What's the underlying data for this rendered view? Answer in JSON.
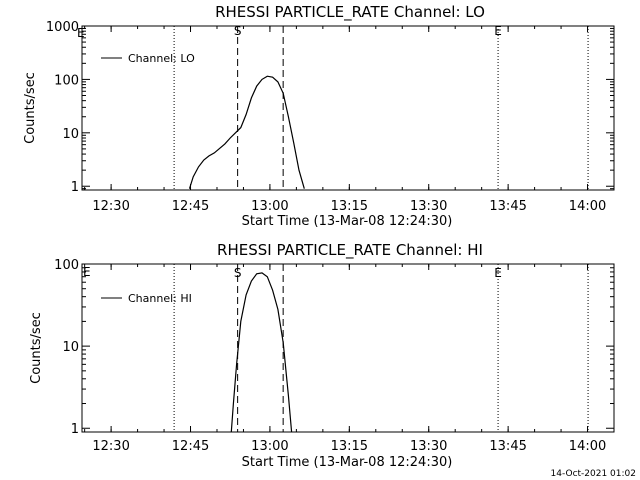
{
  "chart_data": [
    {
      "type": "line",
      "title": "RHESSI PARTICLE_RATE Channel: LO",
      "xlabel": "Start Time (13-Mar-08 12:24:30)",
      "ylabel": "Counts/sec",
      "x_tick_labels": [
        "12:30",
        "12:45",
        "13:00",
        "13:15",
        "13:30",
        "13:45",
        "14:00"
      ],
      "x_ticks_min": [
        5.5,
        20.5,
        35.5,
        50.5,
        65.5,
        80.5,
        95.5
      ],
      "xlim_min": [
        0,
        100.5
      ],
      "y_scale": "log",
      "ylim": [
        0.85,
        1000
      ],
      "y_tick_labels": [
        "1",
        "10",
        "100",
        "1000"
      ],
      "y_ticks": [
        1,
        10,
        100,
        1000
      ],
      "legend": {
        "label": "Channel: LO",
        "placement": "top-left"
      },
      "series": [
        {
          "name": "Channel: LO",
          "x_min": [
            20.3,
            21.0,
            22.0,
            23.0,
            24.0,
            25.0,
            26.0,
            27.0,
            28.0,
            29.0,
            30.0,
            31.0,
            32.0,
            33.0,
            34.0,
            35.0,
            36.0,
            37.0,
            38.0,
            39.0,
            40.0,
            41.0,
            42.0
          ],
          "y": [
            0.9,
            1.5,
            2.3,
            3.1,
            3.7,
            4.2,
            5.1,
            6.2,
            8.0,
            10.0,
            12.5,
            22,
            45,
            75,
            100,
            115,
            110,
            90,
            55,
            20,
            6.5,
            2.0,
            0.9
          ]
        }
      ],
      "vertical_lines": [
        {
          "x_min": 17.4,
          "style": "dotted"
        },
        {
          "x_min": 29.4,
          "style": "dashed"
        },
        {
          "x_min": 38.0,
          "style": "dashed"
        },
        {
          "x_min": 78.6,
          "style": "dotted"
        },
        {
          "x_min": 95.6,
          "style": "dotted"
        }
      ],
      "markers": [
        {
          "label": "S",
          "x_min": 29.4
        },
        {
          "label": "E",
          "x_min": 78.6
        }
      ],
      "corner_mark": "E"
    },
    {
      "type": "line",
      "title": "RHESSI PARTICLE_RATE Channel: HI",
      "xlabel": "Start Time (13-Mar-08 12:24:30)",
      "ylabel": "Counts/sec",
      "x_tick_labels": [
        "12:30",
        "12:45",
        "13:00",
        "13:15",
        "13:30",
        "13:45",
        "14:00"
      ],
      "x_ticks_min": [
        5.5,
        20.5,
        35.5,
        50.5,
        65.5,
        80.5,
        95.5
      ],
      "xlim_min": [
        0,
        100.5
      ],
      "y_scale": "log",
      "ylim": [
        0.9,
        100
      ],
      "y_tick_labels": [
        "1",
        "10",
        "100"
      ],
      "y_ticks": [
        1,
        10,
        100
      ],
      "legend": {
        "label": "Channel: HI",
        "placement": "top-left"
      },
      "series": [
        {
          "name": "Channel: HI",
          "x_min": [
            28.2,
            28.6,
            29.2,
            30.0,
            31.0,
            32.0,
            33.0,
            34.0,
            35.0,
            36.0,
            37.0,
            38.0,
            39.0,
            39.6
          ],
          "y": [
            0.9,
            2.0,
            6.0,
            20,
            42,
            62,
            76,
            78,
            70,
            48,
            28,
            11,
            2.5,
            0.9
          ]
        }
      ],
      "vertical_lines": [
        {
          "x_min": 17.4,
          "style": "dotted"
        },
        {
          "x_min": 29.4,
          "style": "dashed"
        },
        {
          "x_min": 38.0,
          "style": "dashed"
        },
        {
          "x_min": 78.6,
          "style": "dotted"
        },
        {
          "x_min": 95.6,
          "style": "dotted"
        }
      ],
      "markers": [
        {
          "label": "S",
          "x_min": 29.4
        },
        {
          "label": "E",
          "x_min": 78.6
        }
      ],
      "corner_mark": "E"
    }
  ],
  "footer": {
    "timestamp": "14-Oct-2021 01:02"
  }
}
